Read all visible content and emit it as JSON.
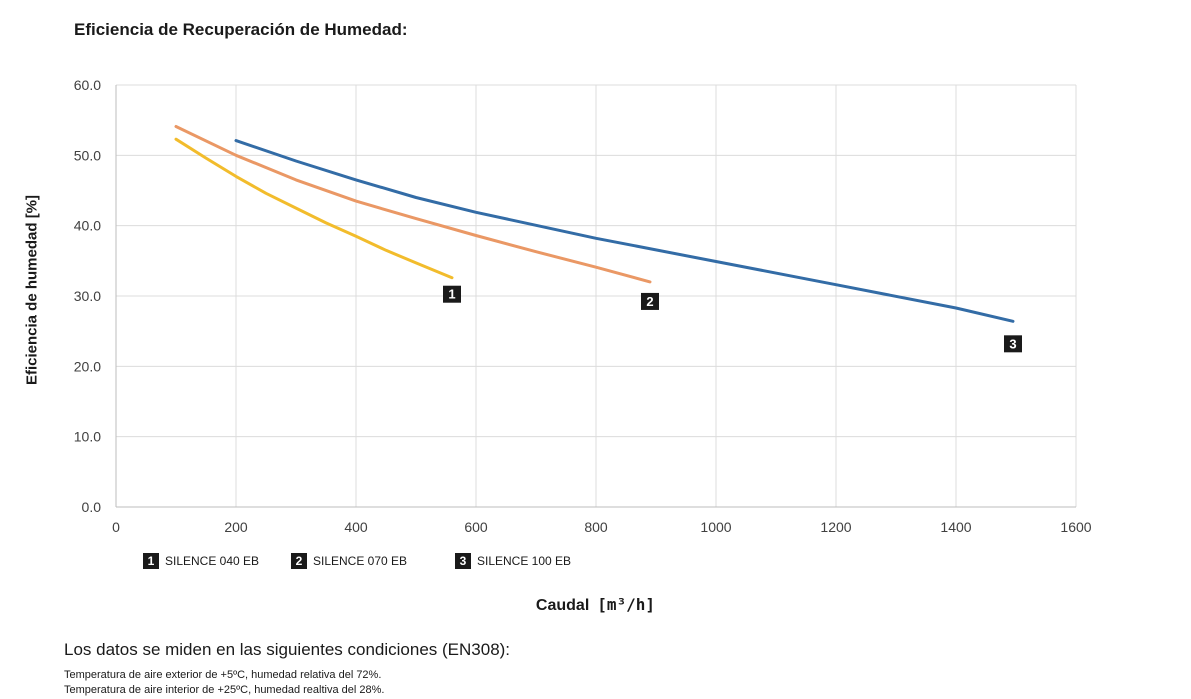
{
  "chart_data": {
    "type": "line",
    "title": "Eficiencia de Recuperación de Humedad:",
    "xlabel": "Caudal",
    "xunit": "[m³/h]",
    "ylabel": "Eficiencia de humedad [%]",
    "xlim": [
      0,
      1600
    ],
    "ylim": [
      0,
      60
    ],
    "xticks": [
      0,
      200,
      400,
      600,
      800,
      1000,
      1200,
      1400,
      1600
    ],
    "xtick_labels": [
      "0",
      "200",
      "400",
      "600",
      "800",
      "1000",
      "1200",
      "1400",
      "1600"
    ],
    "yticks": [
      0,
      10,
      20,
      30,
      40,
      50,
      60
    ],
    "ytick_labels": [
      "0.0",
      "10.0",
      "20.0",
      "30.0",
      "40.0",
      "50.0",
      "60.0"
    ],
    "grid": true,
    "legend_position": "bottom",
    "series": [
      {
        "name": "SILENCE 040 EB",
        "badge": "1",
        "color": "#f2bc2c",
        "x": [
          100,
          150,
          200,
          250,
          300,
          350,
          400,
          450,
          500,
          560
        ],
        "y": [
          52.3,
          49.6,
          47.0,
          44.6,
          42.5,
          40.4,
          38.5,
          36.5,
          34.7,
          32.6
        ]
      },
      {
        "name": "SILENCE 070 EB",
        "badge": "2",
        "color": "#ea9865",
        "x": [
          100,
          200,
          300,
          400,
          500,
          600,
          700,
          800,
          890
        ],
        "y": [
          54.1,
          50.0,
          46.5,
          43.5,
          41.0,
          38.6,
          36.3,
          34.1,
          32.0
        ]
      },
      {
        "name": "SILENCE 100 EB",
        "badge": "3",
        "color": "#336ca6",
        "x": [
          200,
          300,
          400,
          500,
          600,
          800,
          1000,
          1200,
          1400,
          1495
        ],
        "y": [
          52.1,
          49.2,
          46.5,
          44.0,
          41.9,
          38.2,
          34.9,
          31.6,
          28.3,
          26.4
        ]
      }
    ]
  },
  "notes": {
    "title": "Los datos se miden en las siguientes condiciones (EN308):",
    "lines": [
      "Temperatura de aire exterior de +5ºC, humedad relativa del 72%.",
      "Temperatura de aire interior de +25ºC, humedad realtiva del 28%."
    ]
  }
}
